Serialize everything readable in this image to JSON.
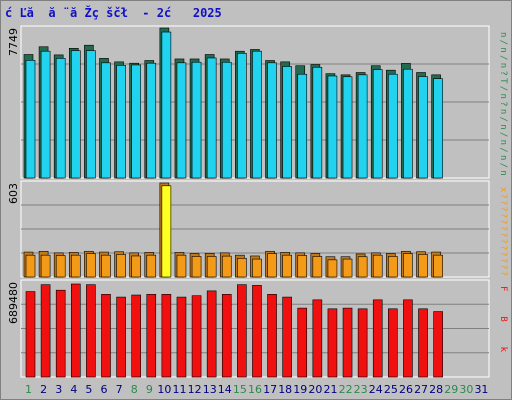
{
  "title": "ć Ľă  ă ¨ă Žç ščł  - 2ć   2025",
  "colors": {
    "background": "#c0c0c0",
    "pages_front": "#22d3f0",
    "pages_back": "#226a50",
    "hits_front": "#f39a18",
    "hits_back": "#c07a1c",
    "bytes_front": "#f01010",
    "highlight": "#ffff22",
    "weekend_label": "#2a8a4a",
    "day_label": "#10208a"
  },
  "chart_data": [
    {
      "type": "bar",
      "panel": "top",
      "ylabel": "7749",
      "ylim": [
        0,
        7749
      ],
      "grid": true,
      "categories": [
        "1",
        "2",
        "3",
        "4",
        "5",
        "6",
        "7",
        "8",
        "9",
        "10",
        "11",
        "12",
        "13",
        "14",
        "15",
        "16",
        "17",
        "18",
        "19",
        "20",
        "21",
        "22",
        "23",
        "24",
        "25",
        "26",
        "27",
        "28",
        "29",
        "30",
        "31"
      ],
      "series": [
        {
          "role": "back",
          "values": [
            6380,
            6780,
            6360,
            6700,
            6860,
            6180,
            6000,
            5930,
            6070,
            7749,
            6150,
            6150,
            6380,
            6150,
            6550,
            6640,
            6070,
            6000,
            5800,
            5860,
            5390,
            5330,
            5450,
            5800,
            5570,
            5920,
            5450,
            5330,
            null,
            null,
            null
          ]
        },
        {
          "role": "front",
          "values": [
            6080,
            6550,
            6180,
            6580,
            6580,
            5950,
            5820,
            5840,
            5930,
            7540,
            5950,
            5980,
            6200,
            5980,
            6440,
            6550,
            5950,
            5760,
            5360,
            5720,
            5270,
            5230,
            5330,
            5600,
            5360,
            5620,
            5240,
            5130,
            null,
            null,
            null
          ]
        }
      ],
      "legend": [
        "n",
        "/",
        "n",
        "/",
        "n",
        "?",
        "T",
        "/",
        "n",
        "?",
        "n",
        "/",
        "n",
        "/",
        "n",
        "/",
        "n",
        "/",
        "n"
      ]
    },
    {
      "type": "bar",
      "panel": "middle",
      "ylabel": "603",
      "ylim": [
        0,
        603
      ],
      "grid": true,
      "categories": [
        "1",
        "2",
        "3",
        "4",
        "5",
        "6",
        "7",
        "8",
        "9",
        "10",
        "11",
        "12",
        "13",
        "14",
        "15",
        "16",
        "17",
        "18",
        "19",
        "20",
        "21",
        "22",
        "23",
        "24",
        "25",
        "26",
        "27",
        "28",
        "29",
        "30",
        "31"
      ],
      "series": [
        {
          "role": "back",
          "values": [
            160,
            165,
            155,
            158,
            165,
            160,
            162,
            155,
            158,
            603,
            158,
            150,
            152,
            155,
            140,
            135,
            165,
            158,
            155,
            150,
            130,
            130,
            148,
            155,
            150,
            165,
            162,
            160,
            null,
            null,
            null
          ]
        },
        {
          "role": "front",
          "values": [
            140,
            140,
            138,
            140,
            150,
            140,
            145,
            135,
            140,
            585,
            140,
            132,
            132,
            134,
            120,
            115,
            150,
            140,
            138,
            132,
            110,
            115,
            130,
            140,
            132,
            150,
            145,
            140,
            null,
            null,
            null
          ]
        }
      ],
      "legend": [
        "x",
        "?",
        "?",
        "?",
        "?",
        "?",
        "?",
        "?",
        "?",
        "?",
        "?",
        "?",
        "?",
        "?"
      ]
    },
    {
      "type": "bar",
      "panel": "bottom",
      "ylabel": "689480",
      "ylim": [
        0,
        689480
      ],
      "grid": true,
      "categories": [
        "1",
        "2",
        "3",
        "4",
        "5",
        "6",
        "7",
        "8",
        "9",
        "10",
        "11",
        "12",
        "13",
        "14",
        "15",
        "16",
        "17",
        "18",
        "19",
        "20",
        "21",
        "22",
        "23",
        "24",
        "25",
        "26",
        "27",
        "28",
        "29",
        "30",
        "31"
      ],
      "series": [
        {
          "role": "front",
          "values": [
            620000,
            670000,
            630000,
            675000,
            670000,
            600000,
            580000,
            595000,
            600000,
            600000,
            580000,
            590000,
            625000,
            600000,
            670000,
            665000,
            600000,
            580000,
            500000,
            560000,
            495000,
            500000,
            495000,
            560000,
            495000,
            560000,
            495000,
            475000,
            null,
            null,
            null
          ]
        }
      ],
      "legend": [
        "F",
        "B",
        "k"
      ]
    }
  ]
}
